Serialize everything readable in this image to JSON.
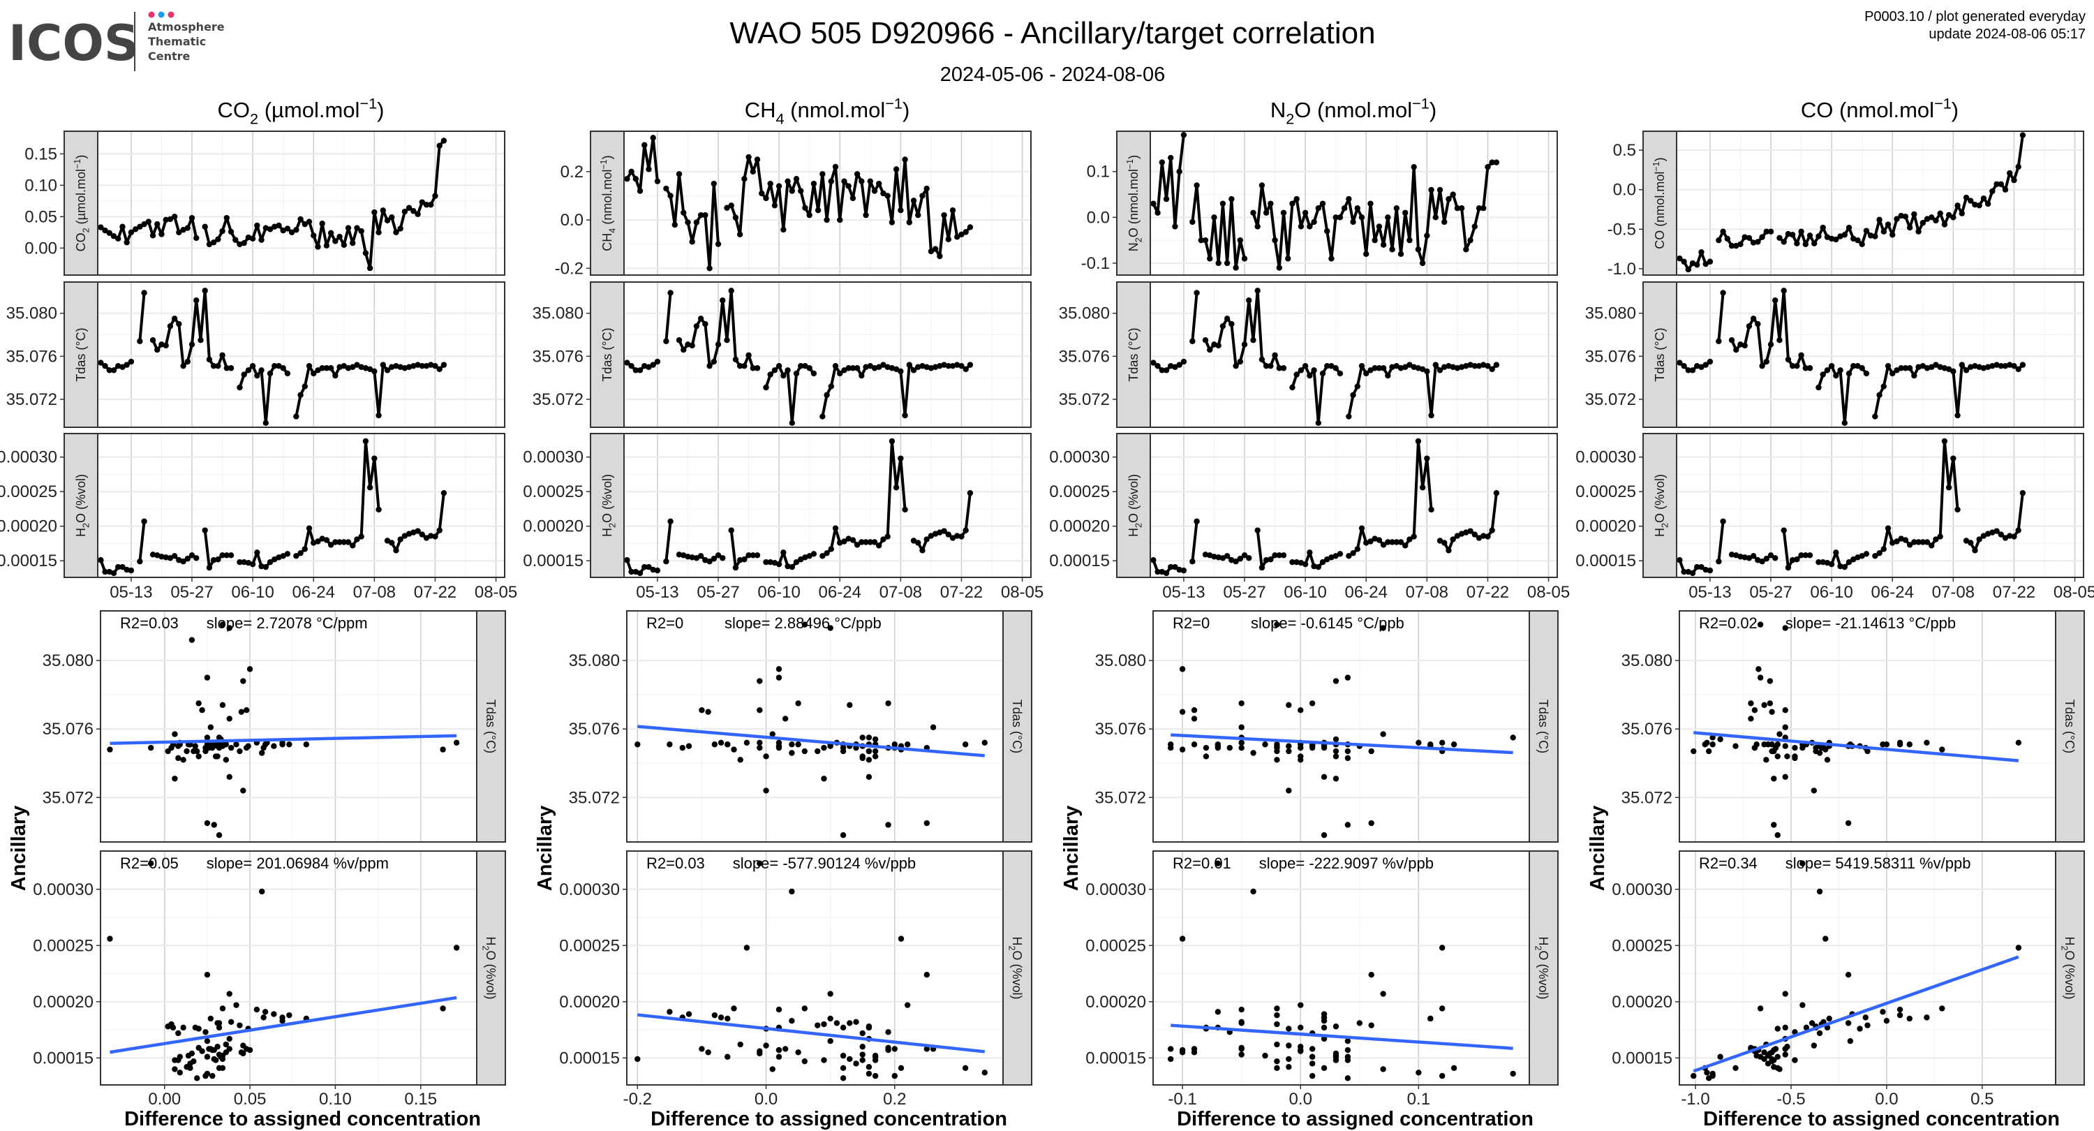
{
  "header": {
    "logo_text": "ICOS",
    "logo_sub": [
      "Atmosphere",
      "Thematic",
      "Centre"
    ],
    "title": "WAO 505 D920966 - Ancillary/target correlation",
    "subtitle": "2024-05-06 - 2024-08-06",
    "info_line1": "P0003.10 / plot generated everyday",
    "info_line2": "update  2024-08-06 05:17"
  },
  "colors": {
    "series": "#000000",
    "fit": "#3366FF",
    "strip": "#D9D9D9",
    "logo_dot_pink": "#E8336F",
    "logo_dot_blue": "#1E9BF0",
    "logo_text": "#444444"
  },
  "chart_data": {
    "type": "line",
    "start_date": "2024-05-06",
    "date_ticks": [
      "05-13",
      "05-27",
      "06-10",
      "06-24",
      "07-08",
      "07-22",
      "08-05"
    ],
    "xlim_days": [
      -0.7,
      93
    ],
    "scatter_ylabel": "Ancillary",
    "scatter_xlabel": "Difference to assigned concentration",
    "ancillary": {
      "tdas": {
        "label": {
          "main": "Tdas (°C)",
          "sub": "",
          "rest": ""
        },
        "ylim": [
          35.0694,
          35.0829
        ],
        "yticks": [
          "35.072",
          "35.076",
          "35.080"
        ],
        "values": [
          35.0754,
          35.0751,
          35.0747,
          35.0747,
          35.0751,
          35.075,
          35.0752,
          35.0755,
          null,
          35.0774,
          35.0819,
          null,
          35.0775,
          35.0766,
          35.0771,
          35.077,
          35.0788,
          35.0795,
          35.079,
          35.0751,
          35.0755,
          35.0771,
          35.0812,
          35.0775,
          35.0821,
          35.0757,
          35.0751,
          35.0751,
          35.0761,
          35.0749,
          35.0749,
          null,
          35.0731,
          35.0743,
          35.0747,
          35.0751,
          35.0742,
          35.0747,
          35.0698,
          35.0744,
          35.0751,
          35.0751,
          35.0749,
          35.0744,
          null,
          35.0704,
          35.0724,
          35.0732,
          35.0751,
          35.0744,
          35.0747,
          35.0749,
          35.0749,
          35.0749,
          35.0742,
          35.075,
          35.0751,
          35.0749,
          35.075,
          35.0752,
          35.075,
          35.0749,
          35.0748,
          35.0746,
          35.0705,
          35.0752,
          35.0747,
          35.075,
          35.0751,
          35.075,
          35.0749,
          35.075,
          35.0751,
          35.0752,
          35.0751,
          35.0751,
          35.0752,
          35.0751,
          35.0748,
          35.0752
        ]
      },
      "h2o": {
        "label": {
          "main": "H",
          "sub": "2",
          "rest": "O (%vol)"
        },
        "ylim": [
          0.000126,
          0.000334
        ],
        "yticks": [
          "0.00015",
          "0.00020",
          "0.00025",
          "0.00030"
        ],
        "values": [
          0.000151,
          0.000134,
          0.000134,
          0.000132,
          0.000141,
          0.000141,
          0.000137,
          0.000136,
          null,
          0.000149,
          0.000207,
          null,
          0.000159,
          0.000158,
          0.000156,
          0.000155,
          0.000154,
          0.000157,
          0.000151,
          0.000149,
          0.000153,
          0.000158,
          0.000154,
          null,
          0.000194,
          0.00014,
          0.000151,
          0.000152,
          0.000158,
          0.000158,
          0.000158,
          null,
          0.000148,
          0.000148,
          0.000147,
          0.000145,
          0.000162,
          0.000142,
          0.000141,
          0.000148,
          0.000152,
          0.000155,
          0.000157,
          0.00016,
          null,
          0.000157,
          0.000161,
          0.000167,
          0.000197,
          0.000176,
          0.000178,
          0.000182,
          0.00018,
          0.000173,
          0.000177,
          0.000177,
          0.000177,
          0.000177,
          0.000172,
          0.000181,
          0.000185,
          0.000323,
          0.000256,
          0.000298,
          0.000224,
          null,
          0.000179,
          0.000176,
          0.000165,
          0.000181,
          0.000186,
          0.000189,
          0.000191,
          0.000193,
          0.000188,
          0.000183,
          0.000186,
          0.000185,
          0.000194,
          0.000248
        ]
      }
    },
    "gases": [
      {
        "name": "CO2",
        "header": {
          "main": "CO",
          "sub": "2",
          "unit": " (µmol.mol",
          "sup": "−1",
          "close": ")"
        },
        "strip": {
          "main": "CO",
          "sub": "2",
          "unit": " (µmol.mol",
          "sup": "−1",
          "close": ")"
        },
        "ylim": [
          -0.043,
          0.186
        ],
        "yticks": [
          "0.00",
          "0.05",
          "0.10",
          "0.15"
        ],
        "values": [
          0.033,
          0.028,
          0.024,
          0.019,
          0.015,
          0.034,
          0.009,
          0.025,
          0.03,
          0.034,
          0.038,
          0.042,
          0.02,
          0.038,
          0.022,
          0.045,
          0.046,
          0.05,
          0.025,
          0.029,
          0.032,
          0.048,
          0.016,
          null,
          0.034,
          0.006,
          0.009,
          0.014,
          0.027,
          0.048,
          0.026,
          0.013,
          0.006,
          0.008,
          0.017,
          0.015,
          0.036,
          0.013,
          0.032,
          0.03,
          0.034,
          0.036,
          0.028,
          0.031,
          0.025,
          0.029,
          0.046,
          0.038,
          0.042,
          0.02,
          0.002,
          0.039,
          0.004,
          0.024,
          0.011,
          0.018,
          0.005,
          0.032,
          0.008,
          0.032,
          0.027,
          -0.008,
          -0.032,
          0.057,
          0.025,
          0.06,
          0.044,
          0.049,
          0.025,
          0.031,
          0.058,
          0.064,
          0.059,
          0.054,
          0.073,
          0.069,
          0.069,
          0.083,
          0.163,
          0.171
        ],
        "scatter": {
          "xlim": [
            -0.0375,
            0.1828
          ],
          "xticks": [
            "0.00",
            "0.05",
            "0.10",
            "0.15"
          ],
          "tdas_stats": {
            "r2": "R2=0.03",
            "slope": "slope= 2.72078 °C/ppm"
          },
          "h2o_stats": {
            "r2": "R2=0.05",
            "slope": "slope= 201.06984 %v/ppm"
          }
        }
      },
      {
        "name": "CH4",
        "header": {
          "main": "CH",
          "sub": "4",
          "unit": " (nmol.mol",
          "sup": "−1",
          "close": ")"
        },
        "strip": {
          "main": "CH",
          "sub": "4",
          "unit": " (nmol.mol",
          "sup": "−1",
          "close": ")"
        },
        "ylim": [
          -0.228,
          0.367
        ],
        "yticks": [
          "-0.2",
          "0.0",
          "0.2"
        ],
        "values": [
          0.17,
          0.2,
          0.17,
          0.12,
          0.31,
          0.21,
          0.34,
          0.16,
          null,
          0.13,
          0.1,
          -0.02,
          0.19,
          0.03,
          -0.01,
          -0.09,
          -0.01,
          0.02,
          0.02,
          -0.2,
          0.15,
          -0.1,
          null,
          0.05,
          0.06,
          0.01,
          -0.06,
          0.17,
          0.26,
          0.2,
          0.25,
          0.11,
          0.09,
          0.15,
          0.06,
          0.14,
          -0.04,
          0.16,
          0.12,
          0.17,
          0.12,
          0.05,
          0.02,
          0.15,
          0.04,
          0.19,
          0.0,
          0.16,
          0.22,
          0.0,
          0.16,
          0.14,
          0.09,
          0.19,
          0.16,
          0.02,
          0.16,
          0.12,
          0.15,
          0.11,
          0.1,
          -0.01,
          0.21,
          0.04,
          0.25,
          -0.01,
          0.08,
          0.02,
          0.1,
          0.13,
          -0.13,
          -0.12,
          -0.15,
          0.02,
          -0.08,
          0.04,
          -0.07,
          -0.06,
          -0.05,
          -0.03
        ],
        "scatter": {
          "xlim": [
            -0.2166,
            0.3685
          ],
          "xticks": [
            "-0.2",
            "0.0",
            "0.2"
          ],
          "tdas_stats": {
            "r2": "R2=0",
            "slope": "slope= 2.88496 °C/ppb"
          },
          "h2o_stats": {
            "r2": "R2=0.03",
            "slope": "slope= -577.90124 %v/ppb"
          }
        }
      },
      {
        "name": "N2O",
        "header": {
          "main": "N",
          "sub": "2",
          "unit": "O (nmol.mol",
          "sup": "−1",
          "close": ")"
        },
        "strip": {
          "main": "N",
          "sub": "2",
          "unit": "O (nmol.mol",
          "sup": "−1",
          "close": ")"
        },
        "ylim": [
          -0.126,
          0.188
        ],
        "yticks": [
          "-0.1",
          "0.0",
          "0.1"
        ],
        "values": [
          0.03,
          0.01,
          0.12,
          0.04,
          0.13,
          -0.02,
          0.1,
          0.18,
          null,
          -0.01,
          0.07,
          -0.05,
          -0.05,
          -0.09,
          0.0,
          -0.1,
          0.03,
          -0.1,
          0.04,
          -0.11,
          -0.05,
          -0.09,
          null,
          0.01,
          -0.02,
          0.07,
          0.01,
          0.03,
          -0.05,
          -0.11,
          0.01,
          -0.09,
          0.03,
          0.04,
          -0.02,
          0.01,
          -0.02,
          -0.01,
          0.02,
          0.03,
          -0.03,
          -0.09,
          0.0,
          0.0,
          0.02,
          0.04,
          -0.01,
          0.02,
          0.0,
          -0.08,
          0.03,
          -0.05,
          -0.02,
          -0.06,
          0.0,
          -0.07,
          0.02,
          -0.08,
          0.01,
          -0.05,
          0.11,
          -0.07,
          -0.1,
          -0.04,
          0.06,
          0.0,
          0.06,
          -0.01,
          0.04,
          0.05,
          0.02,
          0.02,
          -0.07,
          -0.05,
          -0.02,
          0.02,
          0.02,
          0.11,
          0.12,
          0.12
        ],
        "scatter": {
          "xlim": [
            -0.1249,
            0.1938
          ],
          "xticks": [
            "-0.1",
            "0.0",
            "0.1"
          ],
          "tdas_stats": {
            "r2": "R2=0",
            "slope": "slope= -0.6145 °C/ppb"
          },
          "h2o_stats": {
            "r2": "R2=0.01",
            "slope": "slope= -222.9097 %v/ppb"
          }
        }
      },
      {
        "name": "CO",
        "header": {
          "main": "CO",
          "sub": "",
          "unit": " (nmol.mol",
          "sup": "−1",
          "close": ")"
        },
        "strip": {
          "main": "CO",
          "sub": "",
          "unit": " (nmol.mol",
          "sup": "−1",
          "close": ")"
        },
        "ylim": [
          -1.08,
          0.739
        ],
        "yticks": [
          "-1.0",
          "-0.5",
          "0.0",
          "0.5"
        ],
        "values": [
          -0.87,
          -0.91,
          -1.01,
          -0.93,
          -0.95,
          -0.79,
          -0.94,
          -0.91,
          null,
          -0.64,
          -0.53,
          -0.62,
          -0.71,
          -0.71,
          -0.69,
          -0.6,
          -0.61,
          -0.67,
          -0.66,
          -0.6,
          -0.53,
          -0.53,
          null,
          -0.61,
          -0.66,
          -0.56,
          -0.57,
          -0.68,
          -0.53,
          -0.69,
          -0.58,
          -0.68,
          -0.59,
          -0.48,
          -0.6,
          -0.62,
          -0.63,
          -0.59,
          -0.57,
          -0.48,
          -0.62,
          -0.64,
          -0.69,
          -0.52,
          -0.58,
          -0.59,
          -0.38,
          -0.53,
          -0.44,
          -0.57,
          -0.37,
          -0.33,
          -0.34,
          -0.48,
          -0.31,
          -0.53,
          -0.42,
          -0.37,
          -0.35,
          -0.39,
          -0.3,
          -0.44,
          -0.32,
          -0.35,
          -0.2,
          -0.3,
          -0.1,
          -0.14,
          -0.19,
          -0.2,
          -0.11,
          -0.18,
          -0.02,
          0.07,
          0.07,
          0.0,
          0.21,
          0.12,
          0.29,
          0.69
        ],
        "scatter": {
          "xlim": [
            -1.084,
            0.884
          ],
          "xticks": [
            "-1.0",
            "-0.5",
            "0.0",
            "0.5"
          ],
          "tdas_stats": {
            "r2": "R2=0.02",
            "slope": "slope= -21.14613 °C/ppb"
          },
          "h2o_stats": {
            "r2": "R2=0.34",
            "slope": "slope= 5419.58311 %v/ppb"
          }
        }
      }
    ]
  }
}
